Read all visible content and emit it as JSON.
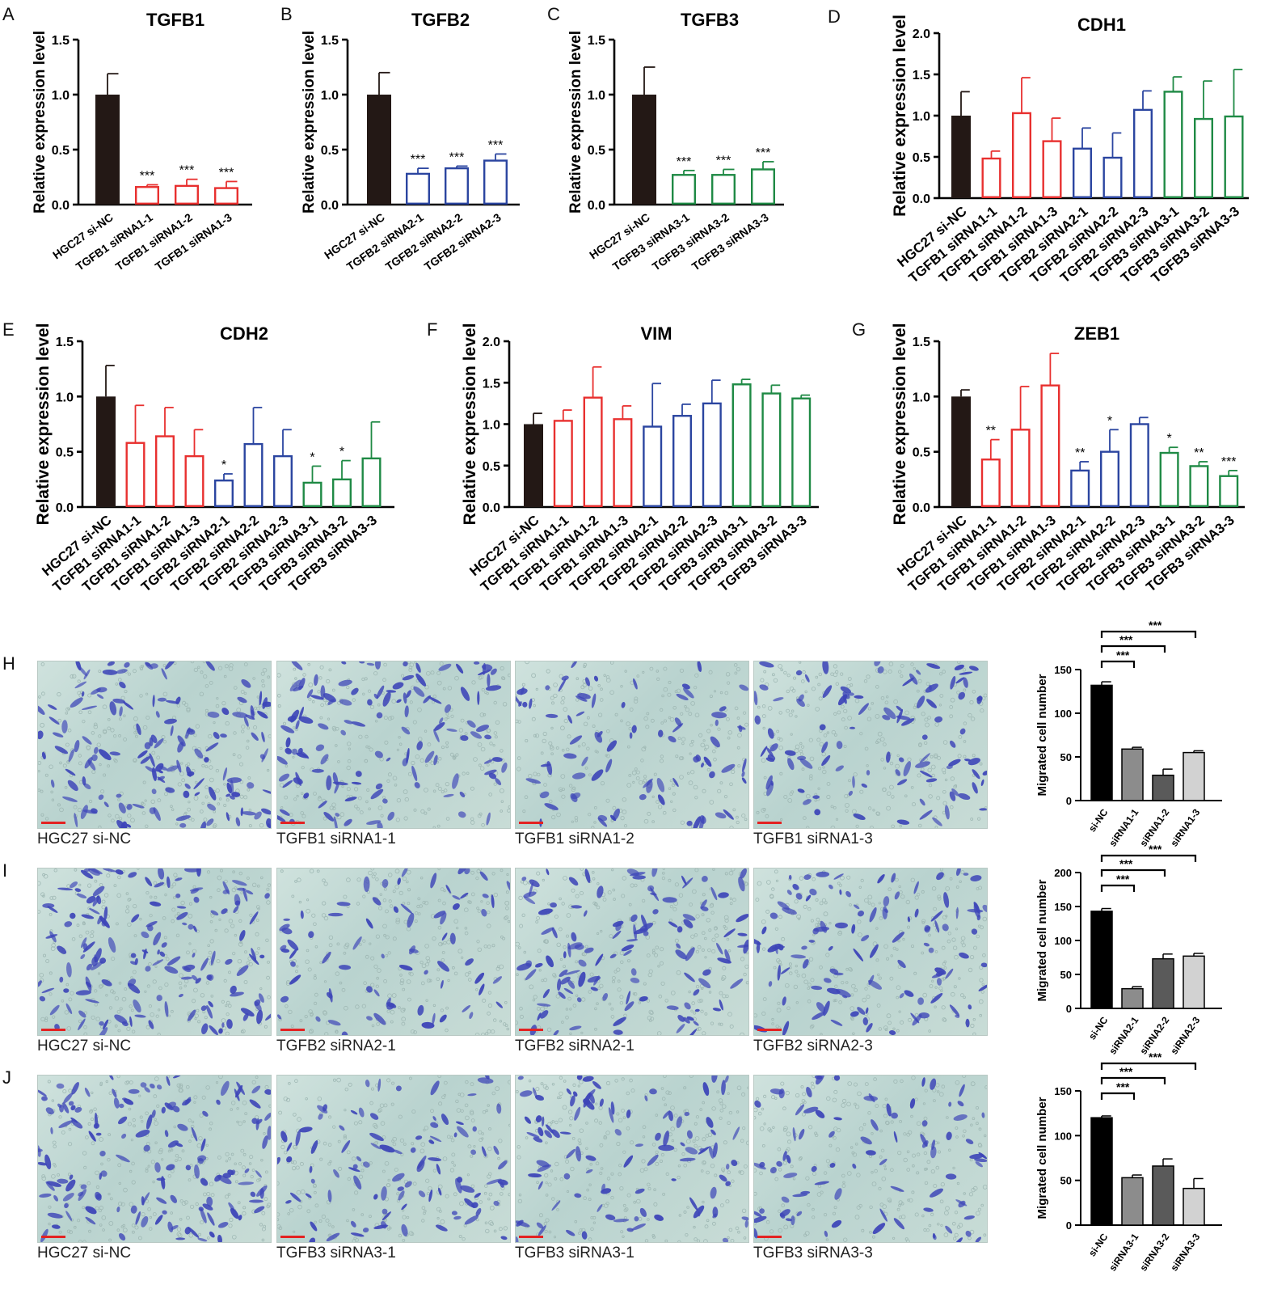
{
  "panel_letters": [
    "A",
    "B",
    "C",
    "D",
    "E",
    "F",
    "G",
    "H",
    "I",
    "J"
  ],
  "chart_data": [
    {
      "panel": "A",
      "type": "bar",
      "title": "TGFB1",
      "ylabel": "Relative expression level",
      "ylim": [
        0,
        1.5
      ],
      "yticks": [
        "0.0",
        "0.5",
        "1.0",
        "1.5"
      ],
      "ytick_values": [
        0,
        0.5,
        1.0,
        1.5
      ],
      "categories": [
        "HGC27 si-NC",
        "TGFB1 siRNA1-1",
        "TGFB1 siRNA1-2",
        "TGFB1 siRNA1-3"
      ],
      "values": [
        1.0,
        0.16,
        0.17,
        0.15
      ],
      "errors": [
        0.19,
        0.02,
        0.06,
        0.06
      ],
      "significance": [
        "",
        "***",
        "***",
        "***"
      ],
      "colors": [
        "#231815",
        "#e8302f",
        "#e8302f",
        "#e8302f"
      ],
      "filled": [
        true,
        false,
        false,
        false
      ]
    },
    {
      "panel": "B",
      "type": "bar",
      "title": "TGFB2",
      "ylabel": "Relative expression level",
      "ylim": [
        0,
        1.5
      ],
      "yticks": [
        "0.0",
        "0.5",
        "1.0",
        "1.5"
      ],
      "ytick_values": [
        0,
        0.5,
        1.0,
        1.5
      ],
      "categories": [
        "HGC27 si-NC",
        "TGFB2 siRNA2-1",
        "TGFB2 siRNA2-2",
        "TGFB2 siRNA2-3"
      ],
      "values": [
        1.0,
        0.28,
        0.33,
        0.4
      ],
      "errors": [
        0.2,
        0.05,
        0.02,
        0.06
      ],
      "significance": [
        "",
        "***",
        "***",
        "***"
      ],
      "colors": [
        "#231815",
        "#2b45a0",
        "#2b45a0",
        "#2b45a0"
      ],
      "filled": [
        true,
        false,
        false,
        false
      ]
    },
    {
      "panel": "C",
      "type": "bar",
      "title": "TGFB3",
      "ylabel": "Relative expression level",
      "ylim": [
        0,
        1.5
      ],
      "yticks": [
        "0.0",
        "0.5",
        "1.0",
        "1.5"
      ],
      "ytick_values": [
        0,
        0.5,
        1.0,
        1.5
      ],
      "categories": [
        "HGC27 si-NC",
        "TGFB3 siRNA3-1",
        "TGFB3 siRNA3-2",
        "TGFB3 siRNA3-3"
      ],
      "values": [
        1.0,
        0.27,
        0.27,
        0.32
      ],
      "errors": [
        0.25,
        0.04,
        0.05,
        0.07
      ],
      "significance": [
        "",
        "***",
        "***",
        "***"
      ],
      "colors": [
        "#231815",
        "#1f8a45",
        "#1f8a45",
        "#1f8a45"
      ],
      "filled": [
        true,
        false,
        false,
        false
      ]
    },
    {
      "panel": "D",
      "type": "bar",
      "title": "CDH1",
      "ylabel": "Relative expression level",
      "ylim": [
        0,
        2.0
      ],
      "yticks": [
        "0.0",
        "0.5",
        "1.0",
        "1.5",
        "2.0"
      ],
      "ytick_values": [
        0,
        0.5,
        1.0,
        1.5,
        2.0
      ],
      "categories": [
        "HGC27 si-NC",
        "TGFB1 siRNA1-1",
        "TGFB1 siRNA1-2",
        "TGFB1 siRNA1-3",
        "TGFB2 siRNA2-1",
        "TGFB2 siRNA2-2",
        "TGFB2 siRNA2-3",
        "TGFB3 siRNA3-1",
        "TGFB3 siRNA3-2",
        "TGFB3 siRNA3-3"
      ],
      "values": [
        1.0,
        0.48,
        1.03,
        0.69,
        0.6,
        0.49,
        1.07,
        1.29,
        0.96,
        0.99
      ],
      "errors": [
        0.29,
        0.09,
        0.43,
        0.28,
        0.25,
        0.3,
        0.23,
        0.18,
        0.46,
        0.57
      ],
      "significance": [
        "",
        "",
        "",
        "",
        "",
        "",
        "",
        "",
        "",
        ""
      ],
      "colors": [
        "#231815",
        "#e8302f",
        "#e8302f",
        "#e8302f",
        "#2b45a0",
        "#2b45a0",
        "#2b45a0",
        "#1f8a45",
        "#1f8a45",
        "#1f8a45"
      ],
      "filled": [
        true,
        false,
        false,
        false,
        false,
        false,
        false,
        false,
        false,
        false
      ]
    },
    {
      "panel": "E",
      "type": "bar",
      "title": "CDH2",
      "ylabel": "Relative expression level",
      "ylim": [
        0,
        1.5
      ],
      "yticks": [
        "0.0",
        "0.5",
        "1.0",
        "1.5"
      ],
      "ytick_values": [
        0,
        0.5,
        1.0,
        1.5
      ],
      "categories": [
        "HGC27 si-NC",
        "TGFB1 siRNA1-1",
        "TGFB1 siRNA1-2",
        "TGFB1 siRNA1-3",
        "TGFB2 siRNA2-1",
        "TGFB2 siRNA2-2",
        "TGFB2 siRNA2-3",
        "TGFB3 siRNA3-1",
        "TGFB3 siRNA3-2",
        "TGFB3 siRNA3-3"
      ],
      "values": [
        1.0,
        0.58,
        0.64,
        0.46,
        0.24,
        0.57,
        0.46,
        0.22,
        0.25,
        0.44
      ],
      "errors": [
        0.28,
        0.34,
        0.26,
        0.24,
        0.06,
        0.33,
        0.24,
        0.15,
        0.17,
        0.33
      ],
      "significance": [
        "",
        "",
        "",
        "",
        "*",
        "",
        "",
        "*",
        "*",
        ""
      ],
      "colors": [
        "#231815",
        "#e8302f",
        "#e8302f",
        "#e8302f",
        "#2b45a0",
        "#2b45a0",
        "#2b45a0",
        "#1f8a45",
        "#1f8a45",
        "#1f8a45"
      ],
      "filled": [
        true,
        false,
        false,
        false,
        false,
        false,
        false,
        false,
        false,
        false
      ]
    },
    {
      "panel": "F",
      "type": "bar",
      "title": "VIM",
      "ylabel": "Relative expression level",
      "ylim": [
        0,
        2.0
      ],
      "yticks": [
        "0.0",
        "0.5",
        "1.0",
        "1.5",
        "2.0"
      ],
      "ytick_values": [
        0,
        0.5,
        1.0,
        1.5,
        2.0
      ],
      "categories": [
        "HGC27 si-NC",
        "TGFB1 siRNA1-1",
        "TGFB1 siRNA1-2",
        "TGFB1 siRNA1-3",
        "TGFB2 siRNA2-1",
        "TGFB2 siRNA2-2",
        "TGFB2 siRNA2-3",
        "TGFB3 siRNA3-1",
        "TGFB3 siRNA3-2",
        "TGFB3 siRNA3-3"
      ],
      "values": [
        1.0,
        1.04,
        1.32,
        1.06,
        0.97,
        1.1,
        1.25,
        1.48,
        1.37,
        1.31
      ],
      "errors": [
        0.13,
        0.13,
        0.37,
        0.16,
        0.52,
        0.14,
        0.28,
        0.06,
        0.1,
        0.04
      ],
      "significance": [
        "",
        "",
        "",
        "",
        "",
        "",
        "",
        "",
        "",
        ""
      ],
      "colors": [
        "#231815",
        "#e8302f",
        "#e8302f",
        "#e8302f",
        "#2b45a0",
        "#2b45a0",
        "#2b45a0",
        "#1f8a45",
        "#1f8a45",
        "#1f8a45"
      ],
      "filled": [
        true,
        false,
        false,
        false,
        false,
        false,
        false,
        false,
        false,
        false
      ]
    },
    {
      "panel": "G",
      "type": "bar",
      "title": "ZEB1",
      "ylabel": "Relative expression level",
      "ylim": [
        0,
        1.5
      ],
      "yticks": [
        "0.0",
        "0.5",
        "1.0",
        "1.5"
      ],
      "ytick_values": [
        0,
        0.5,
        1.0,
        1.5
      ],
      "categories": [
        "HGC27 si-NC",
        "TGFB1 siRNA1-1",
        "TGFB1 siRNA1-2",
        "TGFB1 siRNA1-3",
        "TGFB2 siRNA2-1",
        "TGFB2 siRNA2-2",
        "TGFB2 siRNA2-3",
        "TGFB3 siRNA3-1",
        "TGFB3 siRNA3-2",
        "TGFB3 siRNA3-3"
      ],
      "values": [
        1.0,
        0.43,
        0.7,
        1.1,
        0.33,
        0.5,
        0.75,
        0.49,
        0.37,
        0.28
      ],
      "errors": [
        0.06,
        0.18,
        0.39,
        0.29,
        0.08,
        0.2,
        0.06,
        0.05,
        0.04,
        0.05
      ],
      "significance": [
        "",
        "**",
        "",
        "",
        "**",
        "*",
        "",
        "*",
        "**",
        "***"
      ],
      "colors": [
        "#231815",
        "#e8302f",
        "#e8302f",
        "#e8302f",
        "#2b45a0",
        "#2b45a0",
        "#2b45a0",
        "#1f8a45",
        "#1f8a45",
        "#1f8a45"
      ],
      "filled": [
        true,
        false,
        false,
        false,
        false,
        false,
        false,
        false,
        false,
        false
      ]
    },
    {
      "panel": "H",
      "type": "bar",
      "title": "",
      "ylabel": "Migrated cell number",
      "ylim": [
        0,
        150
      ],
      "yticks": [
        "0",
        "50",
        "100",
        "150"
      ],
      "ytick_values": [
        0,
        50,
        100,
        150
      ],
      "categories": [
        "si-NC",
        "siRNA1-1",
        "siRNA1-2",
        "siRNA1-3"
      ],
      "values": [
        132,
        59,
        29,
        55
      ],
      "errors": [
        4,
        2,
        7,
        2
      ],
      "brackets": [
        {
          "to": 1,
          "label": "***"
        },
        {
          "to": 2,
          "label": "***"
        },
        {
          "to": 3,
          "label": "***"
        }
      ],
      "colors": [
        "#000000",
        "#8c8c8c",
        "#5a5a5a",
        "#d2d2d2"
      ]
    },
    {
      "panel": "I",
      "type": "bar",
      "title": "",
      "ylabel": "Migrated cell number",
      "ylim": [
        0,
        200
      ],
      "yticks": [
        "0",
        "50",
        "100",
        "150",
        "200"
      ],
      "ytick_values": [
        0,
        50,
        100,
        150,
        200
      ],
      "categories": [
        "si-NC",
        "siRNA2-1",
        "siRNA2-2",
        "siRNA2-3"
      ],
      "values": [
        143,
        29,
        73,
        77
      ],
      "errors": [
        4,
        3,
        7,
        4
      ],
      "brackets": [
        {
          "to": 1,
          "label": "***"
        },
        {
          "to": 2,
          "label": "***"
        },
        {
          "to": 3,
          "label": "***"
        }
      ],
      "colors": [
        "#000000",
        "#8c8c8c",
        "#5a5a5a",
        "#d2d2d2"
      ]
    },
    {
      "panel": "J",
      "type": "bar",
      "title": "",
      "ylabel": "Migrated cell number",
      "ylim": [
        0,
        150
      ],
      "yticks": [
        "0",
        "50",
        "100",
        "150"
      ],
      "ytick_values": [
        0,
        50,
        100,
        150
      ],
      "categories": [
        "si-NC",
        "siRNA3-1",
        "siRNA3-2",
        "siRNA3-3"
      ],
      "values": [
        120,
        53,
        66,
        41
      ],
      "errors": [
        2,
        3,
        8,
        11
      ],
      "brackets": [
        {
          "to": 1,
          "label": "***"
        },
        {
          "to": 2,
          "label": "***"
        },
        {
          "to": 3,
          "label": "***"
        }
      ],
      "colors": [
        "#000000",
        "#8c8c8c",
        "#5a5a5a",
        "#d2d2d2"
      ]
    }
  ],
  "micrograph_captions": {
    "H": [
      "HGC27 si-NC",
      "TGFB1 siRNA1-1",
      "TGFB1 siRNA1-2",
      "TGFB1 siRNA1-3"
    ],
    "I": [
      "HGC27 si-NC",
      "TGFB2 siRNA2-1",
      "TGFB2 siRNA2-1",
      "TGFB2 siRNA2-3"
    ],
    "J": [
      "HGC27 si-NC",
      "TGFB3 siRNA3-1",
      "TGFB3 siRNA3-1",
      "TGFB3 siRNA3-3"
    ]
  },
  "micrograph_cell_density": {
    "H": [
      0.95,
      0.75,
      0.35,
      0.55
    ],
    "I": [
      1.0,
      0.3,
      0.7,
      0.65
    ],
    "J": [
      0.95,
      0.5,
      0.55,
      0.4
    ]
  },
  "colors": {
    "control": "#231815",
    "tgfb1": "#e8302f",
    "tgfb2": "#2b45a0",
    "tgfb3": "#1f8a45",
    "stain": "#3d45b8",
    "membrane": "#c5dcd6"
  }
}
